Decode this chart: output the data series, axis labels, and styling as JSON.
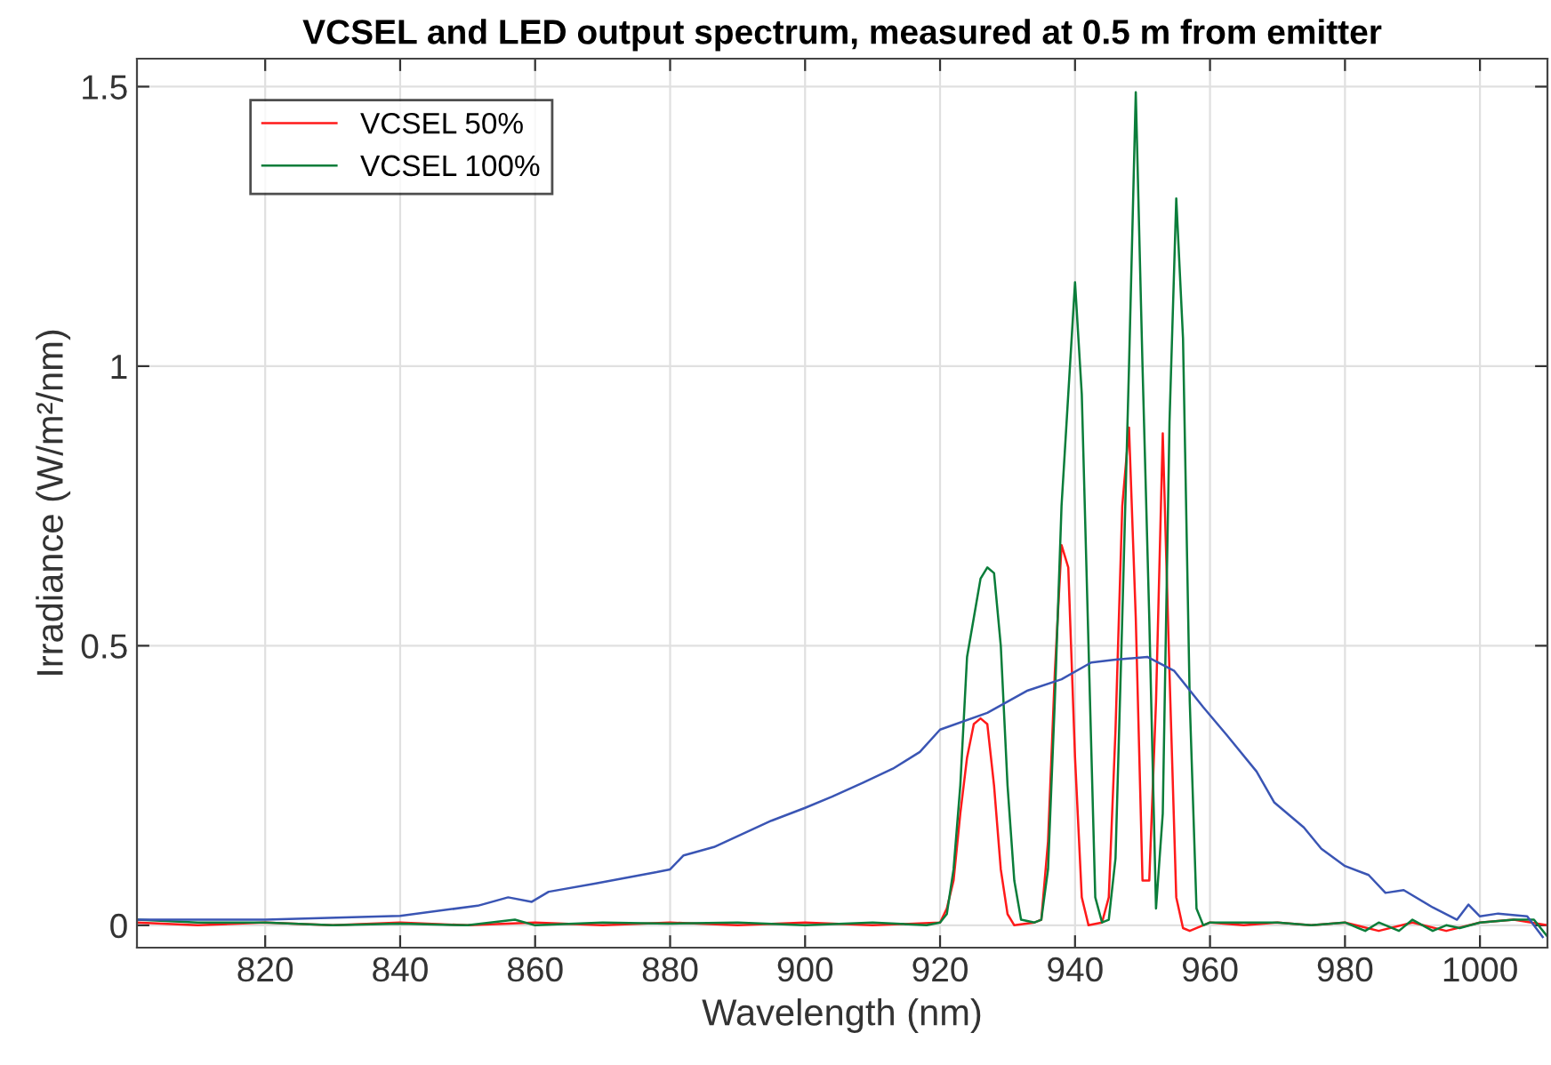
{
  "chart_data": {
    "type": "line",
    "title": "VCSEL and LED output spectrum, measured at 0.5 m from emitter",
    "xlabel": "Wavelength (nm)",
    "ylabel": "Irradiance (W/m²/nm)",
    "xlim": [
      801,
      1010
    ],
    "ylim": [
      -0.04,
      1.55
    ],
    "xticks": [
      820,
      840,
      860,
      880,
      900,
      920,
      940,
      960,
      980,
      1000
    ],
    "yticks": [
      0,
      0.5,
      1,
      1.5
    ],
    "grid": true,
    "legend": "top left",
    "line_style": "solid",
    "marker": "none",
    "series": [
      {
        "name": "VCSEL 50%",
        "color": "#ff1a1a",
        "x": [
          801,
          810,
          820,
          830,
          840,
          850,
          860,
          870,
          880,
          890,
          900,
          910,
          920,
          921,
          922,
          923,
          924,
          925,
          926,
          927,
          928,
          929,
          930,
          931,
          934,
          935,
          936,
          937,
          938,
          939,
          940,
          941,
          942,
          944,
          945,
          946,
          947,
          948,
          949,
          950,
          951,
          952,
          953,
          954,
          955,
          956,
          957,
          960,
          965,
          970,
          975,
          980,
          985,
          990,
          995,
          1000,
          1005,
          1010
        ],
        "values": [
          0.005,
          0.0,
          0.005,
          0.0,
          0.005,
          0.0,
          0.005,
          0.0,
          0.005,
          0.0,
          0.005,
          0.0,
          0.005,
          0.03,
          0.08,
          0.2,
          0.3,
          0.36,
          0.37,
          0.36,
          0.25,
          0.1,
          0.02,
          0.0,
          0.005,
          0.01,
          0.15,
          0.45,
          0.68,
          0.64,
          0.3,
          0.05,
          0.0,
          0.005,
          0.05,
          0.35,
          0.75,
          0.89,
          0.55,
          0.08,
          0.08,
          0.4,
          0.88,
          0.45,
          0.05,
          -0.005,
          -0.01,
          0.005,
          0.0,
          0.005,
          0.0,
          0.005,
          -0.01,
          0.005,
          -0.01,
          0.005,
          0.01,
          0.0
        ]
      },
      {
        "name": "VCSEL 100%",
        "color": "#0a7d3a",
        "x": [
          801,
          810,
          820,
          830,
          840,
          850,
          857,
          860,
          870,
          880,
          890,
          900,
          910,
          918,
          920,
          921,
          922,
          923,
          924,
          925,
          926,
          927,
          928,
          929,
          930,
          931,
          932,
          934,
          935,
          936,
          937,
          938,
          939,
          940,
          941,
          942,
          943,
          944,
          945,
          946,
          947,
          948,
          949,
          950,
          951,
          952,
          953,
          954,
          955,
          956,
          957,
          958,
          959,
          960,
          965,
          970,
          975,
          980,
          983,
          985,
          988,
          990,
          993,
          995,
          997,
          1000,
          1005,
          1008,
          1010
        ],
        "values": [
          0.01,
          0.005,
          0.005,
          0.0,
          0.003,
          0.0,
          0.01,
          0.0,
          0.005,
          0.003,
          0.005,
          0.0,
          0.005,
          0.0,
          0.005,
          0.02,
          0.1,
          0.25,
          0.48,
          0.55,
          0.62,
          0.64,
          0.63,
          0.5,
          0.25,
          0.08,
          0.01,
          0.005,
          0.01,
          0.1,
          0.4,
          0.75,
          0.95,
          1.15,
          0.95,
          0.5,
          0.05,
          0.005,
          0.01,
          0.12,
          0.55,
          1.0,
          1.49,
          1.0,
          0.55,
          0.03,
          0.2,
          0.9,
          1.3,
          1.05,
          0.4,
          0.03,
          0.0,
          0.005,
          0.005,
          0.005,
          0.0,
          0.005,
          -0.01,
          0.005,
          -0.01,
          0.01,
          -0.01,
          0.0,
          -0.005,
          0.005,
          0.01,
          0.01,
          -0.02
        ]
      },
      {
        "color": "#3a55b4",
        "x": [
          801,
          820,
          840,
          851.5,
          856,
          859.5,
          862,
          869,
          878,
          880,
          882,
          886.5,
          891,
          895,
          900,
          904,
          908.6,
          913,
          917,
          920,
          927,
          933,
          938,
          942.4,
          946,
          950.7,
          954.7,
          959,
          962.5,
          966.9,
          969.5,
          973.9,
          976.5,
          980,
          983.5,
          986,
          988.7,
          993,
          996.6,
          998.3,
          1000,
          1002.7,
          1007,
          1009.3
        ],
        "values": [
          0.01,
          0.01,
          0.017,
          0.035,
          0.05,
          0.042,
          0.06,
          0.075,
          0.095,
          0.1,
          0.125,
          0.14,
          0.165,
          0.187,
          0.21,
          0.23,
          0.255,
          0.28,
          0.31,
          0.35,
          0.38,
          0.42,
          0.44,
          0.47,
          0.475,
          0.48,
          0.455,
          0.39,
          0.34,
          0.275,
          0.22,
          0.175,
          0.137,
          0.106,
          0.09,
          0.058,
          0.063,
          0.032,
          0.01,
          0.037,
          0.016,
          0.021,
          0.016,
          -0.021
        ]
      }
    ]
  }
}
